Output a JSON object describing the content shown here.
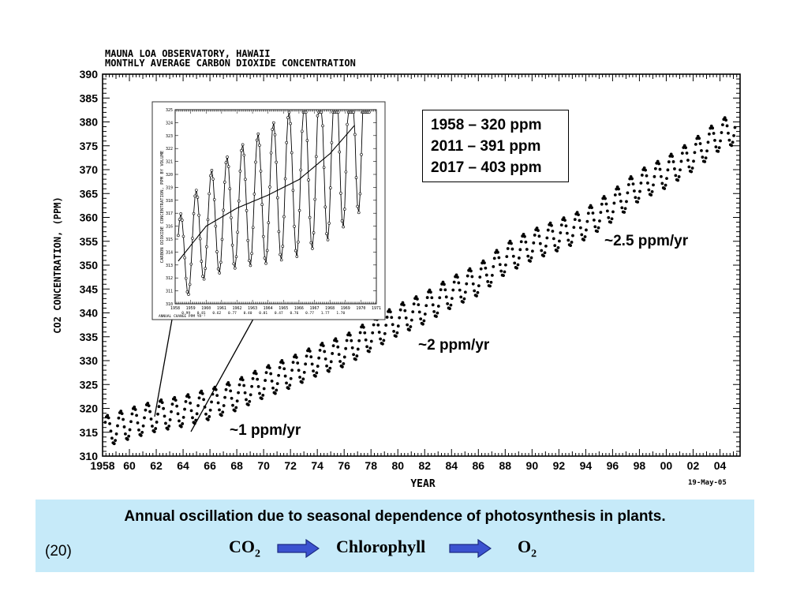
{
  "chart_data": [
    {
      "type": "line",
      "title": "MAUNA LOA OBSERVATORY, HAWAII",
      "subtitle": "MONTHLY AVERAGE CARBON DIOXIDE CONCENTRATION",
      "xlabel": "YEAR",
      "ylabel": "CO2 CONCENTRATION, (PPM)",
      "xlim": [
        1958,
        2005.5
      ],
      "ylim": [
        310,
        390
      ],
      "grid": false,
      "x_tick_labels": [
        "1958",
        "60",
        "62",
        "64",
        "66",
        "68",
        "70",
        "72",
        "74",
        "76",
        "78",
        "80",
        "82",
        "84",
        "86",
        "88",
        "90",
        "92",
        "94",
        "96",
        "98",
        "00",
        "02",
        "04"
      ],
      "y_tick_labels": [
        "310",
        "315",
        "320",
        "325",
        "330",
        "335",
        "340",
        "345",
        "350",
        "355",
        "360",
        "365",
        "370",
        "375",
        "380",
        "385",
        "390"
      ],
      "date_note": "19-May-05",
      "series": [
        {
          "style": "dots",
          "trend_points": [
            [
              1958.2,
              315.2
            ],
            [
              1960,
              316.8
            ],
            [
              1962,
              318.4
            ],
            [
              1964,
              319.4
            ],
            [
              1966,
              320.9
            ],
            [
              1968,
              322.8
            ],
            [
              1970,
              325.4
            ],
            [
              1972,
              327.5
            ],
            [
              1974,
              330.1
            ],
            [
              1976,
              332.0
            ],
            [
              1978,
              335.3
            ],
            [
              1980,
              338.5
            ],
            [
              1982,
              341.0
            ],
            [
              1984,
              344.3
            ],
            [
              1986,
              346.9
            ],
            [
              1988,
              351.3
            ],
            [
              1990,
              354.2
            ],
            [
              1992,
              356.3
            ],
            [
              1994,
              358.6
            ],
            [
              1996,
              362.4
            ],
            [
              1998,
              366.7
            ],
            [
              2000,
              369.4
            ],
            [
              2002,
              373.0
            ],
            [
              2004,
              377.3
            ],
            [
              2005.1,
              378.5
            ]
          ],
          "seasonal_amplitude": 3.2
        }
      ],
      "annotations": [
        "~1 ppm/yr",
        "~2 ppm/yr",
        "~2.5 ppm/yr"
      ]
    },
    {
      "type": "line",
      "ylabel": "CARBON DIOXIDE CONCENTRATION, PPM BY VOLUME",
      "xlim": [
        1958,
        1971
      ],
      "ylim": [
        310,
        325
      ],
      "x_tick_labels": [
        "1958",
        "1959",
        "1960",
        "1961",
        "1962",
        "1963",
        "1964",
        "1965",
        "1966",
        "1967",
        "1968",
        "1969",
        "1970",
        "1971"
      ],
      "y_tick_labels": [
        "310",
        "311",
        "312",
        "313",
        "314",
        "315",
        "316",
        "317",
        "318",
        "319",
        "320",
        "321",
        "322",
        "323",
        "324",
        "325"
      ],
      "annual_change_label": "ANNUAL CHANGE PPM YR⁻¹",
      "annual_change_values": [
        "0.99",
        "0.81",
        "0.62",
        "0.77",
        "0.40",
        "0.81",
        "0.47",
        "0.76",
        "0.77",
        "1.77",
        "1.70"
      ],
      "series": [
        {
          "style": "dots-and-line",
          "monthly_anomaly_amplitude": 3.3,
          "trend_points": [
            [
              1958.2,
              313.3
            ],
            [
              1960,
              316.0
            ],
            [
              1962,
              317.4
            ],
            [
              1964,
              318.4
            ],
            [
              1966,
              319.6
            ],
            [
              1968,
              321.6
            ],
            [
              1969.6,
              323.8
            ]
          ]
        }
      ]
    }
  ],
  "stats": [
    "1958 – 320 ppm",
    "2011 – 391 ppm",
    "2017 – 403 ppm"
  ],
  "rates": {
    "r1": "~1 ppm/yr",
    "r2": "~2 ppm/yr",
    "r3": "~2.5 ppm/yr"
  },
  "caption": {
    "text": "Annual oscillation due to seasonal dependence of photosynthesis in plants.",
    "slide_number": "(20)",
    "equation": {
      "co2": "CO",
      "co2_sub": "2",
      "chlorophyll": "Chlorophyll",
      "o2": "O",
      "o2_sub": "2"
    }
  },
  "colors": {
    "caption_band": "#c6eaf9",
    "arrow_fill": "#3b52d0",
    "arrow_stroke": "#1c2a82",
    "ink": "#000000"
  }
}
